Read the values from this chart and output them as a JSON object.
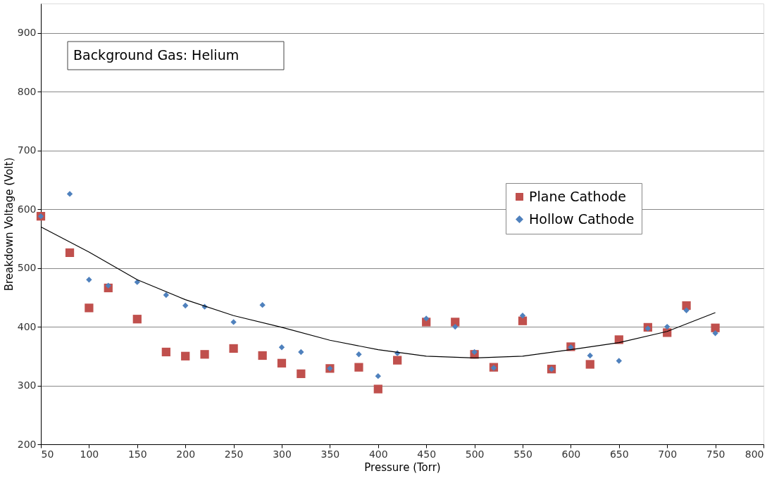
{
  "chart_data": {
    "type": "scatter",
    "xlabel": "Pressure (Torr)",
    "ylabel": "Breakdown Voltage (Volt)",
    "annotations": [
      "Background Gas: Helium"
    ],
    "xlim": [
      50,
      800
    ],
    "xticks": [
      50,
      100,
      150,
      200,
      250,
      300,
      350,
      400,
      450,
      500,
      550,
      600,
      650,
      700,
      750,
      800
    ],
    "ylim": [
      200,
      950
    ],
    "yticks": [
      200,
      300,
      400,
      500,
      600,
      700,
      800,
      900
    ],
    "grid": "y",
    "legend": "right",
    "x": [
      50,
      80,
      100,
      120,
      150,
      180,
      200,
      220,
      250,
      280,
      300,
      320,
      350,
      380,
      400,
      420,
      450,
      480,
      500,
      520,
      550,
      580,
      600,
      620,
      650,
      680,
      700,
      720,
      750
    ],
    "series": [
      {
        "name": "Plane Cathode",
        "color": "#c0504d",
        "marker": "square",
        "values": [
          588,
          526,
          432,
          466,
          413,
          357,
          350,
          353,
          363,
          351,
          338,
          320,
          329,
          331,
          294,
          343,
          408,
          408,
          353,
          331,
          410,
          328,
          366,
          336,
          378,
          399,
          390,
          436,
          398
        ]
      },
      {
        "name": "Hollow Cathode",
        "color": "#4f81bd",
        "marker": "diamond",
        "values": [
          588,
          626,
          480,
          470,
          476,
          454,
          436,
          434,
          408,
          437,
          365,
          357,
          329,
          353,
          316,
          355,
          414,
          400,
          357,
          330,
          419,
          328,
          365,
          351,
          342,
          397,
          400,
          428,
          389
        ]
      },
      {
        "type": "line",
        "color": "#000000",
        "marker": "none",
        "x": [
          50,
          100,
          150,
          200,
          250,
          300,
          350,
          400,
          450,
          500,
          550,
          600,
          650,
          700,
          750
        ],
        "values": [
          570,
          527,
          480,
          446,
          419,
          399,
          377,
          361,
          350,
          347,
          350,
          361,
          373,
          392,
          424
        ]
      }
    ]
  }
}
